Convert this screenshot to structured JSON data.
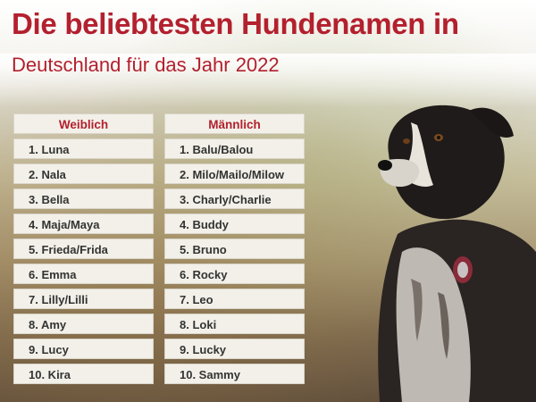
{
  "title": {
    "line1": "Die beliebtesten Hundenamen in",
    "line2": "Deutschland für das Jahr 2022"
  },
  "female": {
    "header": "Weiblich",
    "names": [
      "1. Luna",
      "2. Nala",
      "3. Bella",
      "4. Maja/Maya",
      "5. Frieda/Frida",
      "6. Emma",
      "7. Lilly/Lilli",
      "8. Amy",
      "9. Lucy",
      "10. Kira"
    ]
  },
  "male": {
    "header": "Männlich",
    "names": [
      "1. Balu/Balou",
      "2. Milo/Mailo/Milow",
      "3. Charly/Charlie",
      "4. Buddy",
      "5. Bruno",
      "6. Rocky",
      "7. Leo",
      "8. Loki",
      "9. Lucky",
      "10. Sammy"
    ]
  },
  "colors": {
    "accent": "#b3202e",
    "cell_background": "#f2f0e8",
    "cell_text": "#333333"
  }
}
